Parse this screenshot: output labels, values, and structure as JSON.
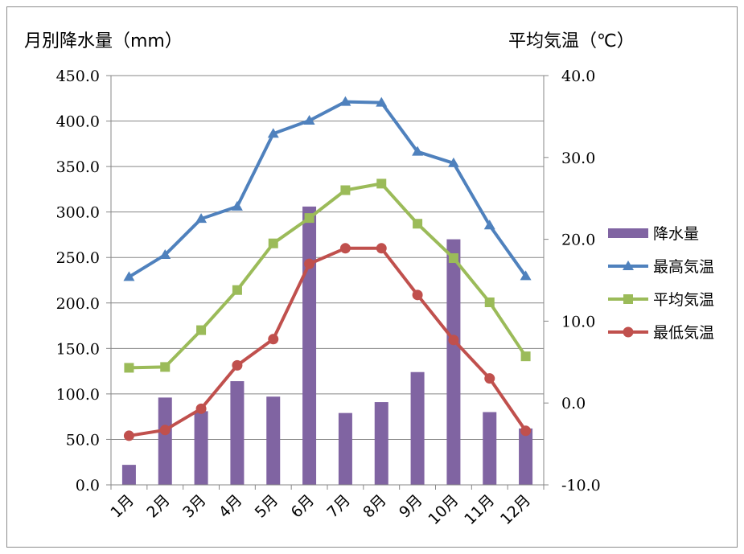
{
  "chart_data": {
    "type": "bar",
    "title": "",
    "xlabel": "",
    "ylabel": "月別降水量（mm）",
    "y2label": "平均気温（℃）",
    "categories": [
      "1月",
      "2月",
      "3月",
      "4月",
      "5月",
      "6月",
      "7月",
      "8月",
      "9月",
      "10月",
      "11月",
      "12月"
    ],
    "ylim": [
      0,
      450
    ],
    "y2lim": [
      -10,
      40
    ],
    "yticks": [
      "0.0",
      "50.0",
      "100.0",
      "150.0",
      "200.0",
      "250.0",
      "300.0",
      "350.0",
      "400.0",
      "450.0"
    ],
    "y2ticks": [
      "-10.0",
      "0.0",
      "10.0",
      "20.0",
      "30.0",
      "40.0"
    ],
    "legend_position": "right",
    "grid": true,
    "series": [
      {
        "name": "降水量",
        "type": "bar",
        "axis": "left",
        "color": "#8064a2",
        "values": [
          22,
          96,
          81,
          114,
          97,
          306,
          79,
          91,
          124,
          270,
          80,
          62
        ]
      },
      {
        "name": "最高気温",
        "type": "line",
        "axis": "right",
        "marker": "triangle",
        "color": "#4f81bd",
        "values": [
          15.4,
          18.1,
          22.5,
          24.0,
          32.9,
          34.5,
          36.8,
          36.7,
          30.7,
          29.3,
          21.7,
          15.5
        ]
      },
      {
        "name": "平均気温",
        "type": "line",
        "axis": "right",
        "marker": "square",
        "color": "#9bbb59",
        "values": [
          4.3,
          4.4,
          8.9,
          13.8,
          19.5,
          22.6,
          26.0,
          26.8,
          21.9,
          17.7,
          12.3,
          5.7
        ]
      },
      {
        "name": "最低気温",
        "type": "line",
        "axis": "right",
        "marker": "circle",
        "color": "#c0504d",
        "values": [
          -4.0,
          -3.3,
          -0.7,
          4.6,
          7.8,
          17.0,
          18.9,
          18.9,
          13.2,
          7.7,
          3.0,
          -3.4
        ]
      }
    ]
  }
}
